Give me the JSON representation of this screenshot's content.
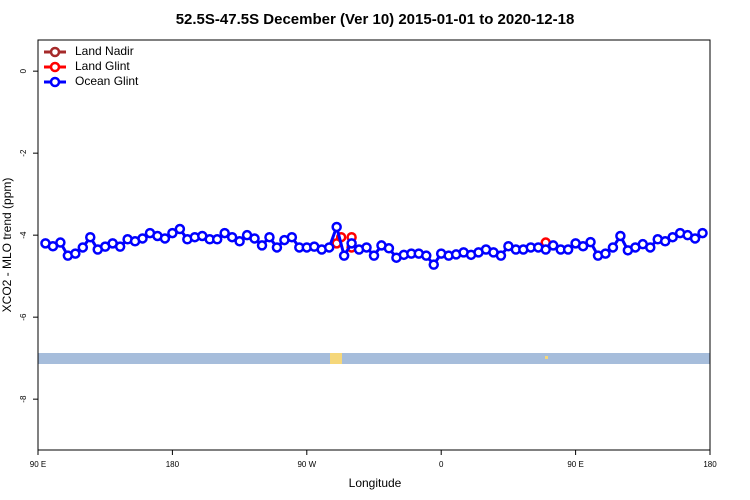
{
  "chart_data": {
    "type": "line",
    "title": "52.5S-47.5S December (Ver 10)   2015-01-01 to 2020-12-18",
    "x_label": "Longitude",
    "y_label": "XCO2 - MLO trend (ppm)",
    "xlim": [
      90,
      540
    ],
    "ylim": [
      -9.24,
      0.76
    ],
    "xticks": [
      {
        "value": 90,
        "label": "90 E"
      },
      {
        "value": 180,
        "label": "180"
      },
      {
        "value": 270,
        "label": "90 W"
      },
      {
        "value": 360,
        "label": "0"
      },
      {
        "value": 450,
        "label": "90 E"
      },
      {
        "value": 540,
        "label": "180"
      }
    ],
    "yticks": [
      0,
      -2,
      -4,
      -6,
      -8
    ],
    "legend": "top-left",
    "series": [
      {
        "name": "Land Nadir",
        "color": "#a52a2a",
        "x": [],
        "values": []
      },
      {
        "name": "Land Glint",
        "color": "#ff0000",
        "x": [
          290,
          293,
          300,
          300,
          430
        ],
        "values": [
          -4.2,
          -4.05,
          -4.05,
          -4.3,
          -4.18
        ]
      },
      {
        "name": "Ocean Glint",
        "color": "#0000ff",
        "x": [
          95,
          100,
          105,
          110,
          115,
          120,
          125,
          130,
          135,
          140,
          145,
          150,
          155,
          160,
          165,
          170,
          175,
          180,
          185,
          190,
          195,
          200,
          205,
          210,
          215,
          220,
          225,
          230,
          235,
          240,
          245,
          250,
          255,
          260,
          265,
          270,
          275,
          280,
          285,
          290,
          295,
          300,
          305,
          310,
          315,
          320,
          325,
          330,
          335,
          340,
          345,
          350,
          355,
          360,
          365,
          370,
          375,
          380,
          385,
          390,
          395,
          400,
          405,
          410,
          415,
          420,
          425,
          430,
          435,
          440,
          445,
          450,
          455,
          460,
          465,
          470,
          475,
          480,
          485,
          490,
          495,
          500,
          505,
          510,
          515,
          520,
          525,
          530,
          535
        ],
        "values": [
          -4.2,
          -4.27,
          -4.18,
          -4.5,
          -4.45,
          -4.3,
          -4.05,
          -4.35,
          -4.28,
          -4.2,
          -4.28,
          -4.1,
          -4.15,
          -4.08,
          -3.95,
          -4.02,
          -4.08,
          -3.95,
          -3.85,
          -4.1,
          -4.05,
          -4.02,
          -4.1,
          -4.1,
          -3.95,
          -4.05,
          -4.15,
          -4.0,
          -4.08,
          -4.25,
          -4.05,
          -4.3,
          -4.12,
          -4.05,
          -4.3,
          -4.3,
          -4.28,
          -4.35,
          -4.3,
          -3.8,
          -4.5,
          -4.2,
          -4.35,
          -4.3,
          -4.5,
          -4.25,
          -4.32,
          -4.55,
          -4.48,
          -4.45,
          -4.45,
          -4.5,
          -4.72,
          -4.45,
          -4.5,
          -4.47,
          -4.42,
          -4.48,
          -4.42,
          -4.35,
          -4.42,
          -4.5,
          -4.27,
          -4.35,
          -4.35,
          -4.3,
          -4.3,
          -4.35,
          -4.25,
          -4.35,
          -4.35,
          -4.2,
          -4.27,
          -4.17,
          -4.5,
          -4.45,
          -4.3,
          -4.02,
          -4.37,
          -4.3,
          -4.22,
          -4.3,
          -4.1,
          -4.15,
          -4.05,
          -3.95,
          -4.0,
          -4.08,
          -3.95
        ]
      }
    ]
  }
}
